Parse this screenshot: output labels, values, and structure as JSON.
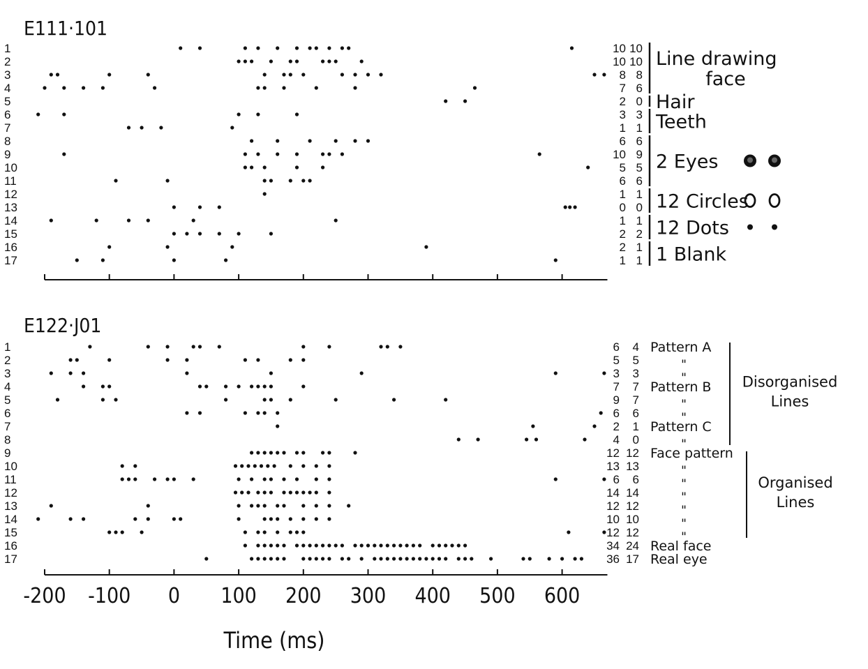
{
  "chart_data": [
    {
      "type": "scatter",
      "title": "E111·101",
      "rows": [
        {
          "label": "1",
          "c1": "10",
          "c2": "10",
          "spikes": [
            10,
            40,
            110,
            130,
            160,
            190,
            210,
            220,
            240,
            260,
            270,
            615
          ]
        },
        {
          "label": "2",
          "c1": "10",
          "c2": "10",
          "spikes": [
            100,
            110,
            120,
            150,
            180,
            190,
            230,
            240,
            250,
            290
          ]
        },
        {
          "label": "3",
          "c1": "8",
          "c2": "8",
          "spikes": [
            -190,
            -180,
            -100,
            -40,
            140,
            170,
            180,
            200,
            260,
            280,
            300,
            320,
            650,
            665
          ]
        },
        {
          "label": "4",
          "c1": "7",
          "c2": "6",
          "spikes": [
            -200,
            -170,
            -140,
            -110,
            -30,
            130,
            140,
            170,
            220,
            280,
            465
          ]
        },
        {
          "label": "5",
          "c1": "2",
          "c2": "0",
          "spikes": [
            420,
            450
          ]
        },
        {
          "label": "6",
          "c1": "3",
          "c2": "3",
          "spikes": [
            -210,
            -170,
            100,
            130,
            190
          ]
        },
        {
          "label": "7",
          "c1": "1",
          "c2": "1",
          "spikes": [
            -70,
            -50,
            -20,
            90
          ]
        },
        {
          "label": "8",
          "c1": "6",
          "c2": "6",
          "spikes": [
            120,
            160,
            210,
            250,
            280,
            300
          ]
        },
        {
          "label": "9",
          "c1": "10",
          "c2": "9",
          "spikes": [
            -170,
            110,
            130,
            160,
            190,
            230,
            240,
            260,
            565
          ]
        },
        {
          "label": "10",
          "c1": "5",
          "c2": "5",
          "spikes": [
            110,
            120,
            140,
            190,
            230,
            640
          ]
        },
        {
          "label": "11",
          "c1": "6",
          "c2": "6",
          "spikes": [
            -90,
            -10,
            140,
            150,
            180,
            200,
            210
          ]
        },
        {
          "label": "12",
          "c1": "1",
          "c2": "1",
          "spikes": [
            140
          ]
        },
        {
          "label": "13",
          "c1": "0",
          "c2": "0",
          "spikes": [
            0,
            40,
            70,
            605,
            612,
            620
          ]
        },
        {
          "label": "14",
          "c1": "1",
          "c2": "1",
          "spikes": [
            -190,
            -120,
            -70,
            -40,
            30,
            250
          ]
        },
        {
          "label": "15",
          "c1": "2",
          "c2": "2",
          "spikes": [
            0,
            20,
            40,
            70,
            100,
            150
          ]
        },
        {
          "label": "16",
          "c1": "2",
          "c2": "1",
          "spikes": [
            -100,
            -10,
            90,
            390
          ]
        },
        {
          "label": "17",
          "c1": "1",
          "c2": "1",
          "spikes": [
            -150,
            -110,
            0,
            80,
            590
          ]
        }
      ],
      "annotations": [
        {
          "text": [
            "Line drawing",
            "face"
          ],
          "rows": [
            1,
            4
          ],
          "counts": [
            "10",
            "10"
          ]
        },
        {
          "text": [
            "Hair"
          ],
          "rows": [
            5,
            5
          ]
        },
        {
          "text": [
            "Teeth"
          ],
          "rows": [
            6,
            7
          ]
        },
        {
          "text": [
            "2 Eyes"
          ],
          "rows": [
            8,
            11
          ],
          "glyph": "eye-icon"
        },
        {
          "text": [
            "12 Circles"
          ],
          "rows": [
            12,
            13
          ],
          "glyph": "circle-icon"
        },
        {
          "text": [
            "12 Dots"
          ],
          "rows": [
            14,
            15
          ],
          "glyph": "dot-icon"
        },
        {
          "text": [
            "1 Blank"
          ],
          "rows": [
            16,
            17
          ]
        }
      ],
      "xlim": [
        -200,
        670
      ],
      "xticks": [
        -200,
        -100,
        0,
        100,
        200,
        300,
        400,
        500,
        600
      ]
    },
    {
      "type": "scatter",
      "title": "E122·J01",
      "rows": [
        {
          "label": "1",
          "c1": "6",
          "c2": "4",
          "spikes": [
            -130,
            -40,
            -10,
            30,
            40,
            70,
            200,
            240,
            320,
            330,
            350
          ]
        },
        {
          "label": "2",
          "c1": "5",
          "c2": "5",
          "spikes": [
            -160,
            -150,
            -100,
            -10,
            20,
            110,
            130,
            180,
            200
          ]
        },
        {
          "label": "3",
          "c1": "3",
          "c2": "3",
          "spikes": [
            -190,
            -160,
            -140,
            20,
            150,
            290,
            590,
            665
          ]
        },
        {
          "label": "4",
          "c1": "7",
          "c2": "7",
          "spikes": [
            -140,
            -110,
            -100,
            40,
            50,
            80,
            100,
            120,
            130,
            140,
            150,
            200
          ]
        },
        {
          "label": "5",
          "c1": "9",
          "c2": "7",
          "spikes": [
            -180,
            -110,
            -90,
            80,
            140,
            150,
            180,
            250,
            340,
            420
          ]
        },
        {
          "label": "6",
          "c1": "6",
          "c2": "6",
          "spikes": [
            20,
            40,
            110,
            130,
            140,
            160,
            660
          ]
        },
        {
          "label": "7",
          "c1": "2",
          "c2": "1",
          "spikes": [
            160,
            555,
            650
          ]
        },
        {
          "label": "8",
          "c1": "4",
          "c2": "0",
          "spikes": [
            440,
            470,
            545,
            560,
            635
          ]
        },
        {
          "label": "9",
          "c1": "12",
          "c2": "12",
          "spikes": [
            120,
            130,
            140,
            150,
            160,
            170,
            190,
            200,
            230,
            240,
            280
          ]
        },
        {
          "label": "10",
          "c1": "13",
          "c2": "13",
          "spikes": [
            -80,
            -60,
            95,
            105,
            115,
            125,
            135,
            145,
            155,
            180,
            200,
            220,
            240
          ]
        },
        {
          "label": "11",
          "c1": "6",
          "c2": "6",
          "spikes": [
            -80,
            -70,
            -60,
            -30,
            -10,
            0,
            30,
            100,
            120,
            140,
            150,
            170,
            190,
            220,
            240,
            590,
            665
          ]
        },
        {
          "label": "12",
          "c1": "14",
          "c2": "14",
          "spikes": [
            95,
            105,
            115,
            130,
            140,
            150,
            170,
            180,
            190,
            200,
            210,
            220,
            240
          ]
        },
        {
          "label": "13",
          "c1": "12",
          "c2": "12",
          "spikes": [
            -190,
            -40,
            100,
            120,
            130,
            140,
            160,
            170,
            200,
            220,
            240,
            270
          ]
        },
        {
          "label": "14",
          "c1": "10",
          "c2": "10",
          "spikes": [
            -210,
            -160,
            -140,
            -60,
            -40,
            0,
            10,
            100,
            140,
            150,
            160,
            180,
            200,
            220,
            240
          ]
        },
        {
          "label": "15",
          "c1": "12",
          "c2": "12",
          "spikes": [
            -100,
            -90,
            -80,
            -50,
            110,
            130,
            140,
            160,
            180,
            190,
            200,
            610,
            665
          ]
        },
        {
          "label": "16",
          "c1": "34",
          "c2": "24",
          "spikes": [
            110,
            130,
            140,
            150,
            160,
            170,
            190,
            200,
            210,
            220,
            230,
            240,
            250,
            260,
            280,
            290,
            300,
            310,
            320,
            330,
            340,
            350,
            360,
            370,
            380,
            400,
            410,
            420,
            430,
            440,
            450
          ]
        },
        {
          "label": "17",
          "c1": "36",
          "c2": "17",
          "spikes": [
            50,
            120,
            130,
            140,
            150,
            160,
            170,
            200,
            210,
            220,
            230,
            240,
            260,
            270,
            290,
            310,
            320,
            330,
            340,
            350,
            360,
            370,
            380,
            390,
            400,
            410,
            420,
            440,
            450,
            460,
            490,
            540,
            550,
            580,
            600,
            620,
            630
          ]
        }
      ],
      "labels": [
        {
          "text": "Pattern A",
          "row": 1
        },
        {
          "text": "\"",
          "row": 2
        },
        {
          "text": "\"",
          "row": 3
        },
        {
          "text": "Pattern B",
          "row": 4
        },
        {
          "text": "\"",
          "row": 5
        },
        {
          "text": "\"",
          "row": 6
        },
        {
          "text": "Pattern C",
          "row": 7
        },
        {
          "text": "\"",
          "row": 8
        },
        {
          "text": "Face pattern",
          "row": 9
        },
        {
          "text": "\"",
          "row": 10
        },
        {
          "text": "\"",
          "row": 11
        },
        {
          "text": "\"",
          "row": 12
        },
        {
          "text": "\"",
          "row": 13
        },
        {
          "text": "\"",
          "row": 14
        },
        {
          "text": "\"",
          "row": 15
        },
        {
          "text": "Real face",
          "row": 16
        },
        {
          "text": "Real eye",
          "row": 17
        }
      ],
      "groups": [
        {
          "text": [
            "Disorganised",
            "Lines"
          ],
          "rows": [
            1,
            8
          ]
        },
        {
          "text": [
            "Organised",
            "Lines"
          ],
          "rows": [
            9,
            15
          ]
        }
      ],
      "xlim": [
        -200,
        670
      ],
      "xticks": [
        -200,
        -100,
        0,
        100,
        200,
        300,
        400,
        500,
        600
      ],
      "xticklabels": [
        "-200",
        "-100",
        "0",
        "100",
        "200",
        "300",
        "400",
        "500",
        "600"
      ],
      "xlabel": "Time (ms)"
    }
  ]
}
